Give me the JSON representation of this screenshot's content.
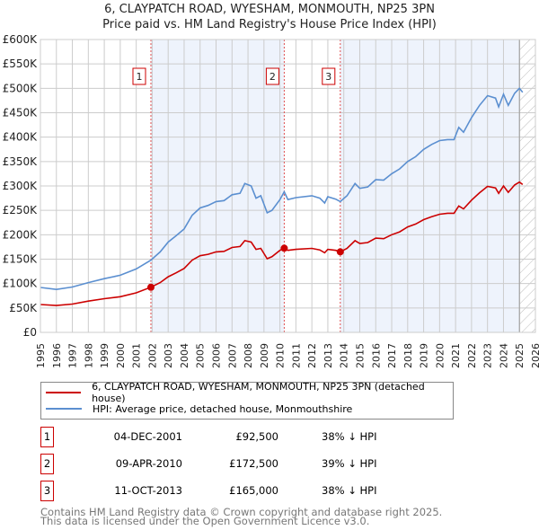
{
  "chart_data": {
    "type": "line",
    "title": "6, CLAYPATCH ROAD, WYESHAM, MONMOUTH, NP25 3PN",
    "subtitle": "Price paid vs. HM Land Registry's House Price Index (HPI)",
    "xlim": [
      1995,
      2026
    ],
    "ylim": [
      0,
      600000
    ],
    "y_ticks": [
      {
        "v": 0,
        "l": "£0"
      },
      {
        "v": 50000,
        "l": "£50K"
      },
      {
        "v": 100000,
        "l": "£100K"
      },
      {
        "v": 150000,
        "l": "£150K"
      },
      {
        "v": 200000,
        "l": "£200K"
      },
      {
        "v": 250000,
        "l": "£250K"
      },
      {
        "v": 300000,
        "l": "£300K"
      },
      {
        "v": 350000,
        "l": "£350K"
      },
      {
        "v": 400000,
        "l": "£400K"
      },
      {
        "v": 450000,
        "l": "£450K"
      },
      {
        "v": 500000,
        "l": "£500K"
      },
      {
        "v": 550000,
        "l": "£550K"
      },
      {
        "v": 600000,
        "l": "£600K"
      }
    ],
    "x_ticks": [
      "1995",
      "1996",
      "1997",
      "1998",
      "1999",
      "2000",
      "2001",
      "2002",
      "2003",
      "2004",
      "2005",
      "2006",
      "2007",
      "2008",
      "2009",
      "2010",
      "2011",
      "2012",
      "2013",
      "2014",
      "2015",
      "2016",
      "2017",
      "2018",
      "2019",
      "2020",
      "2021",
      "2022",
      "2023",
      "2024",
      "2025",
      "2026"
    ],
    "grid": true,
    "series": [
      {
        "name": "HPI: Average price, detached house, Monmouthshire",
        "color": "#5b8fd0",
        "x": [
          1995,
          1996,
          1997,
          1998,
          1999,
          2000,
          2001,
          2001.92,
          2002.5,
          2003,
          2003.5,
          2004,
          2004.5,
          2005,
          2005.5,
          2006,
          2006.5,
          2007,
          2007.5,
          2007.8,
          2008.2,
          2008.5,
          2008.8,
          2009.2,
          2009.5,
          2010,
          2010.27,
          2010.5,
          2011,
          2012,
          2012.5,
          2012.8,
          2013,
          2013.5,
          2013.78,
          2014.2,
          2014.7,
          2015,
          2015.5,
          2016,
          2016.5,
          2017,
          2017.5,
          2018,
          2018.5,
          2019,
          2019.5,
          2020,
          2020.5,
          2020.9,
          2021.2,
          2021.5,
          2022,
          2022.5,
          2023,
          2023.5,
          2023.7,
          2024,
          2024.3,
          2024.7,
          2025,
          2025.2
        ],
        "y": [
          92000,
          88000,
          93000,
          102000,
          110000,
          117000,
          130000,
          148000,
          165000,
          185000,
          198000,
          212000,
          240000,
          255000,
          260000,
          268000,
          270000,
          282000,
          285000,
          305000,
          300000,
          275000,
          280000,
          245000,
          250000,
          272000,
          288000,
          272000,
          276000,
          280000,
          275000,
          265000,
          278000,
          273000,
          268000,
          280000,
          305000,
          295000,
          298000,
          313000,
          312000,
          325000,
          335000,
          350000,
          360000,
          375000,
          385000,
          393000,
          395000,
          395000,
          420000,
          410000,
          440000,
          465000,
          485000,
          480000,
          462000,
          488000,
          465000,
          490000,
          500000,
          492000
        ]
      },
      {
        "name": "6, CLAYPATCH ROAD, WYESHAM, MONMOUTH, NP25 3PN (detached house)",
        "color": "#cc0000",
        "x": [
          1995,
          1996,
          1997,
          1998,
          1999,
          2000,
          2001,
          2001.92,
          2002.5,
          2003,
          2003.5,
          2004,
          2004.5,
          2005,
          2005.5,
          2006,
          2006.5,
          2007,
          2007.5,
          2007.8,
          2008.2,
          2008.5,
          2008.8,
          2009.2,
          2009.5,
          2010,
          2010.27,
          2010.5,
          2011,
          2012,
          2012.5,
          2012.8,
          2013,
          2013.5,
          2013.78,
          2014.2,
          2014.7,
          2015,
          2015.5,
          2016,
          2016.5,
          2017,
          2017.5,
          2018,
          2018.5,
          2019,
          2019.5,
          2020,
          2020.5,
          2020.9,
          2021.2,
          2021.5,
          2022,
          2022.5,
          2023,
          2023.5,
          2023.7,
          2024,
          2024.3,
          2024.7,
          2025,
          2025.2
        ],
        "y": [
          57000,
          55000,
          58000,
          64000,
          69000,
          73000,
          81000,
          92500,
          102000,
          114000,
          122000,
          131000,
          148000,
          157000,
          160000,
          165000,
          166000,
          174000,
          176000,
          188000,
          185000,
          170000,
          172000,
          151000,
          155000,
          168000,
          172500,
          168000,
          170000,
          172000,
          169000,
          163000,
          170000,
          168000,
          165000,
          172000,
          188000,
          182000,
          184000,
          193000,
          192000,
          200000,
          206000,
          216000,
          222000,
          231000,
          237000,
          242000,
          244000,
          244000,
          259000,
          253000,
          271000,
          286000,
          299000,
          296000,
          285000,
          300000,
          287000,
          302000,
          308000,
          303000
        ]
      }
    ],
    "sales": [
      {
        "n": "1",
        "x": 2001.92,
        "y": 92500
      },
      {
        "n": "2",
        "x": 2010.27,
        "y": 172500
      },
      {
        "n": "3",
        "x": 2013.78,
        "y": 165000
      }
    ],
    "shaded_ranges": [
      [
        2001.92,
        2010.27
      ],
      [
        2013.78,
        2025
      ]
    ],
    "forecast_hatch_from": 2025
  },
  "legend": {
    "property": "6, CLAYPATCH ROAD, WYESHAM, MONMOUTH, NP25 3PN (detached house)",
    "hpi": "HPI: Average price, detached house, Monmouthshire"
  },
  "transactions": [
    {
      "n": "1",
      "date": "04-DEC-2001",
      "price": "£92,500",
      "hpi": "38% ↓ HPI"
    },
    {
      "n": "2",
      "date": "09-APR-2010",
      "price": "£172,500",
      "hpi": "39% ↓ HPI"
    },
    {
      "n": "3",
      "date": "11-OCT-2013",
      "price": "£165,000",
      "hpi": "38% ↓ HPI"
    }
  ],
  "footer": {
    "line1": "Contains HM Land Registry data © Crown copyright and database right 2025.",
    "line2": "This data is licensed under the Open Government Licence v3.0."
  }
}
